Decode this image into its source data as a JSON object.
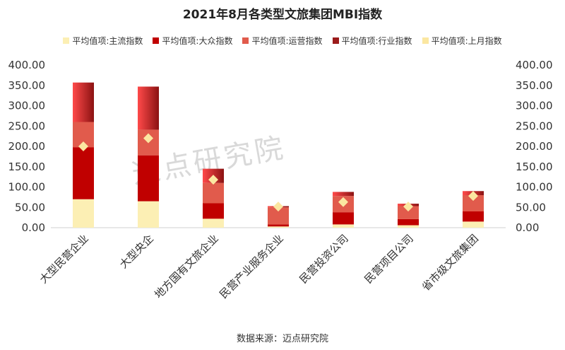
{
  "chart_data": {
    "type": "bar",
    "title": "2021年8月各类型文旅集团MBI指数",
    "categories": [
      "大型民营企业",
      "大型央企",
      "地方国有文旅企业",
      "民营产业服务企业",
      "民营投资公司",
      "民营项目公司",
      "省市级文旅集团"
    ],
    "series": [
      {
        "name": "平均值项:主流指数",
        "kind": "stacked-bar",
        "color": "#fcefb4",
        "values": [
          70,
          65,
          22,
          3,
          8,
          6,
          15
        ]
      },
      {
        "name": "平均值项:大众指数",
        "kind": "stacked-bar",
        "color": "#c00000",
        "values": [
          128,
          113,
          38,
          5,
          30,
          15,
          25
        ]
      },
      {
        "name": "平均值项:运营指数",
        "kind": "stacked-bar",
        "color": "#e15b4c",
        "values": [
          62,
          63,
          50,
          42,
          40,
          32,
          40
        ]
      },
      {
        "name": "平均值项:行业指数",
        "kind": "stacked-bar",
        "color": "#9b1b1b",
        "values": [
          97,
          106,
          35,
          3,
          10,
          6,
          10
        ]
      },
      {
        "name": "平均值项:上月指数",
        "kind": "marker",
        "color": "#fbe7a1",
        "values": [
          200,
          220,
          118,
          52,
          63,
          52,
          78
        ]
      }
    ],
    "ylim": [
      0,
      400
    ],
    "y_ticks": [
      "0.00",
      "50.00",
      "100.00",
      "150.00",
      "200.00",
      "250.00",
      "300.00",
      "350.00",
      "400.00"
    ],
    "secondary_y_ticks": [
      "0.00",
      "50.00",
      "100.00",
      "150.00",
      "200.00",
      "250.00",
      "300.00",
      "350.00",
      "400.00"
    ],
    "grid": false,
    "legend_position": "top",
    "source_note": "数据来源：迈点研究院",
    "watermark": "迈点研究院"
  }
}
